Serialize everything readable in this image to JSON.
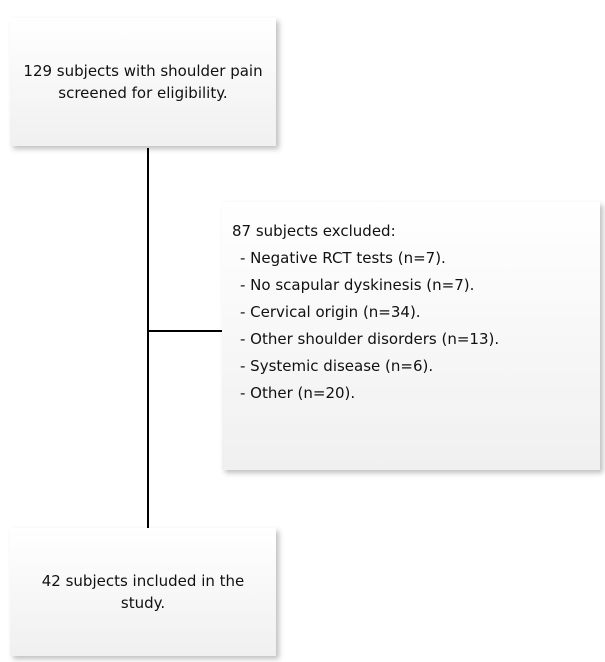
{
  "nodes": [
    {
      "label": "129 subjects with shoulder pain screened for eligibility."
    },
    {
      "label": "87 subjects excluded:",
      "items": [
        "- Negative RCT tests (n=7).",
        "- No scapular dyskinesis (n=7).",
        "- Cervical origin (n=34).",
        "- Other shoulder disorders (n=13).",
        "- Systemic disease (n=6).",
        "- Other (n=20)."
      ]
    },
    {
      "label": "42 subjects included in the study."
    }
  ]
}
